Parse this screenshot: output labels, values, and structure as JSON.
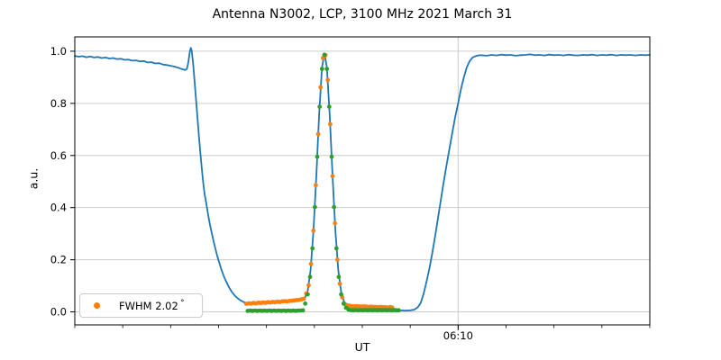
{
  "figure": {
    "title": "Antenna N3002, LCP, 3100 MHz 2021 March 31",
    "background_color": "#ffffff",
    "spine_color": "#000000",
    "grid_color": "#cccccc"
  },
  "legend": {
    "label": "FWHM 2.02",
    "degree_symbol": "°",
    "marker": "circle-icon",
    "marker_color": "#ff7f0e",
    "position": "lower left"
  },
  "chart_data": {
    "type": "line",
    "title": "Antenna N3002, LCP, 3100 MHz 2021 March 31",
    "xlabel": "UT",
    "ylabel": "a.u.",
    "x_unit": "minutes since 05:30 UT",
    "xlim": [
      0,
      60
    ],
    "ylim": [
      -0.05,
      1.055
    ],
    "y_ticks": [
      0.0,
      0.2,
      0.4,
      0.6,
      0.8,
      1.0
    ],
    "y_tick_labels": [
      "0.0",
      "0.2",
      "0.4",
      "0.6",
      "0.8",
      "1.0"
    ],
    "x_minor_tick_step": 5,
    "x_major_ticks": [
      {
        "t": 40,
        "label": "06:10"
      }
    ],
    "grid": {
      "horizontal": "all major y ticks",
      "vertical": "labeled x tick only"
    },
    "legend_entries": [
      {
        "label": "FWHM 2.02 °",
        "color": "#ff7f0e",
        "marker": "circle"
      }
    ],
    "series": [
      {
        "name": "antenna-signal",
        "type": "line",
        "color": "#1f77b4",
        "line_width": 1.8,
        "points": [
          [
            0,
            0.982
          ],
          [
            0.4,
            0.979
          ],
          [
            0.8,
            0.981
          ],
          [
            1.2,
            0.977
          ],
          [
            1.6,
            0.98
          ],
          [
            2,
            0.976
          ],
          [
            2.4,
            0.978
          ],
          [
            2.8,
            0.974
          ],
          [
            3.2,
            0.976
          ],
          [
            3.6,
            0.972
          ],
          [
            4,
            0.974
          ],
          [
            4.4,
            0.97
          ],
          [
            4.8,
            0.971
          ],
          [
            5.2,
            0.967
          ],
          [
            5.6,
            0.968
          ],
          [
            6,
            0.964
          ],
          [
            6.4,
            0.965
          ],
          [
            6.8,
            0.961
          ],
          [
            7.2,
            0.962
          ],
          [
            7.6,
            0.957
          ],
          [
            8,
            0.958
          ],
          [
            8.4,
            0.953
          ],
          [
            8.8,
            0.954
          ],
          [
            9.2,
            0.949
          ],
          [
            9.6,
            0.947
          ],
          [
            10,
            0.944
          ],
          [
            10.4,
            0.941
          ],
          [
            10.8,
            0.937
          ],
          [
            11.2,
            0.931
          ],
          [
            11.5,
            0.928
          ],
          [
            11.7,
            0.932
          ],
          [
            11.85,
            0.958
          ],
          [
            12,
            0.998
          ],
          [
            12.1,
            1.013
          ],
          [
            12.2,
            1.002
          ],
          [
            12.35,
            0.952
          ],
          [
            12.5,
            0.885
          ],
          [
            12.65,
            0.815
          ],
          [
            12.8,
            0.745
          ],
          [
            12.95,
            0.675
          ],
          [
            13.1,
            0.61
          ],
          [
            13.25,
            0.55
          ],
          [
            13.4,
            0.495
          ],
          [
            13.55,
            0.45
          ],
          [
            13.7,
            0.42
          ],
          [
            13.9,
            0.375
          ],
          [
            14.1,
            0.335
          ],
          [
            14.3,
            0.3
          ],
          [
            14.5,
            0.268
          ],
          [
            14.7,
            0.238
          ],
          [
            14.9,
            0.21
          ],
          [
            15.1,
            0.185
          ],
          [
            15.3,
            0.162
          ],
          [
            15.5,
            0.142
          ],
          [
            15.7,
            0.124
          ],
          [
            15.9,
            0.108
          ],
          [
            16.1,
            0.094
          ],
          [
            16.4,
            0.076
          ],
          [
            16.7,
            0.062
          ],
          [
            17,
            0.052
          ],
          [
            17.3,
            0.044
          ],
          [
            17.6,
            0.038
          ],
          [
            17.9,
            0.033
          ],
          [
            18.3,
            0.031
          ],
          [
            19,
            0.032
          ],
          [
            20,
            0.034
          ],
          [
            21,
            0.036
          ],
          [
            22,
            0.039
          ],
          [
            23,
            0.043
          ],
          [
            23.6,
            0.047
          ],
          [
            24,
            0.052
          ],
          [
            24.3,
            0.08
          ],
          [
            24.6,
            0.16
          ],
          [
            24.9,
            0.31
          ],
          [
            25.2,
            0.522
          ],
          [
            25.5,
            0.757
          ],
          [
            25.8,
            0.938
          ],
          [
            26.05,
            0.992
          ],
          [
            26.3,
            0.938
          ],
          [
            26.6,
            0.757
          ],
          [
            26.9,
            0.522
          ],
          [
            27.2,
            0.308
          ],
          [
            27.5,
            0.158
          ],
          [
            27.8,
            0.075
          ],
          [
            28.1,
            0.038
          ],
          [
            28.5,
            0.026
          ],
          [
            29,
            0.022
          ],
          [
            29.5,
            0.021
          ],
          [
            30,
            0.02
          ],
          [
            30.5,
            0.02
          ],
          [
            31,
            0.019
          ],
          [
            31.5,
            0.018
          ],
          [
            32,
            0.018
          ],
          [
            32.5,
            0.016
          ],
          [
            33,
            0.012
          ],
          [
            33.5,
            0.008
          ],
          [
            34,
            0.006
          ],
          [
            34.5,
            0.005
          ],
          [
            35,
            0.006
          ],
          [
            35.4,
            0.008
          ],
          [
            35.8,
            0.018
          ],
          [
            36.1,
            0.035
          ],
          [
            36.4,
            0.07
          ],
          [
            36.7,
            0.115
          ],
          [
            37,
            0.165
          ],
          [
            37.3,
            0.225
          ],
          [
            37.6,
            0.29
          ],
          [
            37.9,
            0.36
          ],
          [
            38.2,
            0.43
          ],
          [
            38.5,
            0.5
          ],
          [
            38.8,
            0.565
          ],
          [
            39.1,
            0.628
          ],
          [
            39.4,
            0.69
          ],
          [
            39.7,
            0.748
          ],
          [
            40,
            0.8
          ],
          [
            40.3,
            0.855
          ],
          [
            40.6,
            0.9
          ],
          [
            40.9,
            0.938
          ],
          [
            41.2,
            0.962
          ],
          [
            41.5,
            0.976
          ],
          [
            41.9,
            0.982
          ],
          [
            42.3,
            0.985
          ],
          [
            43,
            0.983
          ],
          [
            43.5,
            0.986
          ],
          [
            44,
            0.984
          ],
          [
            44.5,
            0.987
          ],
          [
            45,
            0.985
          ],
          [
            45.5,
            0.986
          ],
          [
            46,
            0.983
          ],
          [
            46.5,
            0.985
          ],
          [
            47,
            0.986
          ],
          [
            47.5,
            0.988
          ],
          [
            48,
            0.985
          ],
          [
            48.5,
            0.986
          ],
          [
            49,
            0.984
          ],
          [
            49.5,
            0.987
          ],
          [
            50,
            0.985
          ],
          [
            50.5,
            0.986
          ],
          [
            51,
            0.984
          ],
          [
            51.5,
            0.987
          ],
          [
            52,
            0.985
          ],
          [
            52.5,
            0.984
          ],
          [
            53,
            0.986
          ],
          [
            53.5,
            0.985
          ],
          [
            54,
            0.987
          ],
          [
            54.5,
            0.984
          ],
          [
            55,
            0.986
          ],
          [
            55.5,
            0.985
          ],
          [
            56,
            0.987
          ],
          [
            56.5,
            0.984
          ],
          [
            57,
            0.986
          ],
          [
            57.5,
            0.985
          ],
          [
            58,
            0.986
          ],
          [
            58.5,
            0.984
          ],
          [
            59,
            0.986
          ],
          [
            59.5,
            0.985
          ],
          [
            60,
            0.986
          ]
        ]
      },
      {
        "name": "drift-scan-data",
        "type": "scatter",
        "color": "#ff7f0e",
        "marker_radius": 2.4,
        "points": [
          [
            17.9,
            0.031
          ],
          [
            18.15,
            0.033
          ],
          [
            18.4,
            0.032
          ],
          [
            18.65,
            0.034
          ],
          [
            18.9,
            0.033
          ],
          [
            19.15,
            0.035
          ],
          [
            19.4,
            0.034
          ],
          [
            19.65,
            0.036
          ],
          [
            19.9,
            0.035
          ],
          [
            20.15,
            0.037
          ],
          [
            20.4,
            0.036
          ],
          [
            20.65,
            0.038
          ],
          [
            20.9,
            0.037
          ],
          [
            21.15,
            0.039
          ],
          [
            21.4,
            0.038
          ],
          [
            21.65,
            0.04
          ],
          [
            21.9,
            0.041
          ],
          [
            22.15,
            0.04
          ],
          [
            22.4,
            0.042
          ],
          [
            22.65,
            0.043
          ],
          [
            22.9,
            0.044
          ],
          [
            23.15,
            0.045
          ],
          [
            23.4,
            0.046
          ],
          [
            23.65,
            0.048
          ],
          [
            23.9,
            0.05
          ],
          [
            24.15,
            0.07
          ],
          [
            24.4,
            0.102
          ],
          [
            24.65,
            0.184
          ],
          [
            24.9,
            0.312
          ],
          [
            25.15,
            0.486
          ],
          [
            25.4,
            0.682
          ],
          [
            25.65,
            0.862
          ],
          [
            25.9,
            0.974
          ],
          [
            26.15,
            0.985
          ],
          [
            26.4,
            0.89
          ],
          [
            26.65,
            0.72
          ],
          [
            26.9,
            0.521
          ],
          [
            27.15,
            0.34
          ],
          [
            27.4,
            0.2
          ],
          [
            27.65,
            0.108
          ],
          [
            27.9,
            0.056
          ],
          [
            28.15,
            0.03
          ],
          [
            28.4,
            0.025
          ],
          [
            28.65,
            0.024
          ],
          [
            28.9,
            0.022
          ],
          [
            29.15,
            0.021
          ],
          [
            29.4,
            0.022
          ],
          [
            29.65,
            0.021
          ],
          [
            29.9,
            0.02
          ],
          [
            30.15,
            0.021
          ],
          [
            30.4,
            0.02
          ],
          [
            30.65,
            0.019
          ],
          [
            30.9,
            0.02
          ],
          [
            31.15,
            0.019
          ],
          [
            31.4,
            0.019
          ],
          [
            31.65,
            0.018
          ],
          [
            31.9,
            0.019
          ],
          [
            32.15,
            0.018
          ],
          [
            32.4,
            0.018
          ],
          [
            32.65,
            0.017
          ],
          [
            32.9,
            0.018
          ],
          [
            33.1,
            0.017
          ]
        ]
      },
      {
        "name": "gaussian-fit",
        "type": "scatter",
        "color": "#2ca02c",
        "marker_radius": 2.4,
        "points": [
          [
            18.05,
            0.004
          ],
          [
            18.3,
            0.005
          ],
          [
            18.55,
            0.004
          ],
          [
            18.8,
            0.005
          ],
          [
            19.05,
            0.004
          ],
          [
            19.3,
            0.005
          ],
          [
            19.55,
            0.004
          ],
          [
            19.8,
            0.005
          ],
          [
            20.05,
            0.004
          ],
          [
            20.3,
            0.005
          ],
          [
            20.55,
            0.004
          ],
          [
            20.8,
            0.005
          ],
          [
            21.05,
            0.004
          ],
          [
            21.3,
            0.005
          ],
          [
            21.55,
            0.004
          ],
          [
            21.8,
            0.005
          ],
          [
            22.05,
            0.004
          ],
          [
            22.3,
            0.005
          ],
          [
            22.55,
            0.004
          ],
          [
            22.8,
            0.005
          ],
          [
            23.05,
            0.004
          ],
          [
            23.3,
            0.005
          ],
          [
            23.55,
            0.005
          ],
          [
            23.8,
            0.006
          ],
          [
            24.05,
            0.032
          ],
          [
            24.3,
            0.067
          ],
          [
            24.55,
            0.134
          ],
          [
            24.8,
            0.244
          ],
          [
            25.05,
            0.402
          ],
          [
            25.3,
            0.595
          ],
          [
            25.55,
            0.787
          ],
          [
            25.8,
            0.932
          ],
          [
            26.05,
            0.986
          ],
          [
            26.3,
            0.932
          ],
          [
            26.55,
            0.787
          ],
          [
            26.8,
            0.595
          ],
          [
            27.05,
            0.402
          ],
          [
            27.3,
            0.244
          ],
          [
            27.55,
            0.134
          ],
          [
            27.8,
            0.067
          ],
          [
            28.05,
            0.032
          ],
          [
            28.3,
            0.016
          ],
          [
            28.55,
            0.009
          ],
          [
            28.8,
            0.007
          ],
          [
            29.05,
            0.006
          ],
          [
            29.3,
            0.007
          ],
          [
            29.55,
            0.006
          ],
          [
            29.8,
            0.007
          ],
          [
            30.05,
            0.006
          ],
          [
            30.3,
            0.007
          ],
          [
            30.55,
            0.006
          ],
          [
            30.8,
            0.007
          ],
          [
            31.05,
            0.006
          ],
          [
            31.3,
            0.007
          ],
          [
            31.55,
            0.006
          ],
          [
            31.8,
            0.007
          ],
          [
            32.05,
            0.006
          ],
          [
            32.3,
            0.007
          ],
          [
            32.55,
            0.006
          ],
          [
            32.8,
            0.007
          ],
          [
            33.05,
            0.006
          ],
          [
            33.3,
            0.007
          ],
          [
            33.55,
            0.006
          ],
          [
            33.8,
            0.006
          ]
        ]
      }
    ]
  }
}
